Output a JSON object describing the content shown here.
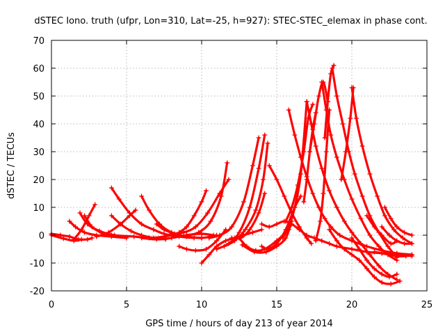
{
  "chart_data": {
    "type": "scatter",
    "title": "dSTEC Iono. truth (ufpr, Lon=310, Lat=-25, h=927): STEC-STEC_elemax in phase cont.",
    "xlabel": "GPS time / hours of day 213 of year 2014",
    "ylabel": "dSTEC  / TECUs",
    "xlim": [
      0,
      25
    ],
    "ylim": [
      -20,
      70
    ],
    "xticks": [
      0,
      5,
      10,
      15,
      20,
      25
    ],
    "yticks": [
      -20,
      -10,
      0,
      10,
      20,
      30,
      40,
      50,
      60,
      70
    ],
    "grid": true,
    "legend": "none",
    "marker": "plus",
    "color": "#ff0000",
    "series": [
      {
        "x": [
          0.0,
          0.6,
          1.2,
          1.8,
          2.4,
          2.7
        ],
        "y": [
          0.5,
          0,
          -0.5,
          -1.5,
          -1.5,
          -1
        ]
      },
      {
        "x": [
          0.0,
          0.8,
          1.5,
          2.0
        ],
        "y": [
          0,
          -1.2,
          -2,
          -1.5
        ]
      },
      {
        "x": [
          1.2,
          1.6,
          2.2,
          3.0,
          4.0,
          5.0
        ],
        "y": [
          5,
          3,
          1,
          0,
          -0.5,
          -1
        ]
      },
      {
        "x": [
          1.5,
          2.0,
          2.5,
          2.9
        ],
        "y": [
          -1.5,
          2,
          7,
          11
        ]
      },
      {
        "x": [
          1.9,
          2.4,
          3.2,
          4.2,
          5.5,
          6.5,
          7.5,
          8.5
        ],
        "y": [
          8,
          4,
          1.5,
          0,
          -0.5,
          -1,
          -0.5,
          0.5
        ]
      },
      {
        "x": [
          2.2,
          2.7,
          3.3,
          4.0
        ],
        "y": [
          7,
          3,
          1,
          0
        ]
      },
      {
        "x": [
          3.0,
          3.8,
          4.6,
          5.2,
          5.6
        ],
        "y": [
          -0.5,
          1,
          4,
          7,
          9
        ]
      },
      {
        "x": [
          4.0,
          4.5,
          5.2,
          6.0,
          6.8,
          7.5,
          8.5,
          9.5
        ],
        "y": [
          17,
          13,
          8,
          4,
          2,
          0.5,
          -0.5,
          -1
        ]
      },
      {
        "x": [
          4.0,
          4.6,
          5.3,
          6.0,
          6.8,
          7.6
        ],
        "y": [
          7,
          4,
          1.5,
          0,
          -1,
          -1.5
        ]
      },
      {
        "x": [
          6.0,
          6.5,
          7.2,
          8.0,
          9.0,
          10.0
        ],
        "y": [
          14,
          9,
          4,
          1,
          -0.5,
          -1
        ]
      },
      {
        "x": [
          6.0,
          7.0,
          8.0,
          9.0,
          10.0,
          10.8
        ],
        "y": [
          -1,
          -1.5,
          -1,
          0,
          0.5,
          0
        ]
      },
      {
        "x": [
          7.0,
          7.5,
          8.2,
          9.0,
          10.0,
          11.0
        ],
        "y": [
          4,
          2,
          0.5,
          -0.5,
          -1,
          0
        ]
      },
      {
        "x": [
          8.5,
          9.0,
          9.5,
          10.0,
          10.3
        ],
        "y": [
          1,
          3,
          7,
          12,
          16
        ]
      },
      {
        "x": [
          8.0,
          8.8,
          9.6,
          10.4,
          11.2,
          11.8
        ],
        "y": [
          0.5,
          1,
          3,
          8,
          15,
          20
        ]
      },
      {
        "x": [
          9.0,
          9.8,
          10.6,
          11.3,
          11.7
        ],
        "y": [
          0,
          1,
          5,
          14,
          26
        ]
      },
      {
        "x": [
          8.5,
          9.0,
          9.6,
          10.3,
          11.0,
          11.6
        ],
        "y": [
          -4,
          -5,
          -5.5,
          -5,
          -2,
          2
        ]
      },
      {
        "x": [
          10.0,
          10.5,
          11.0,
          11.6,
          12.2,
          12.8,
          13.4,
          14.0
        ],
        "y": [
          -10,
          -7,
          -4,
          -2,
          -1,
          0,
          1,
          2
        ]
      },
      {
        "x": [
          10.5,
          11.2,
          12.0,
          12.8,
          13.4,
          13.8
        ],
        "y": [
          -1,
          0,
          3,
          12,
          25,
          35
        ]
      },
      {
        "x": [
          11.0,
          11.8,
          12.5,
          13.2,
          13.8,
          14.2
        ],
        "y": [
          -5,
          -3,
          1,
          10,
          24,
          36
        ]
      },
      {
        "x": [
          11.5,
          12.2,
          12.9,
          13.6,
          14.1,
          14.4
        ],
        "y": [
          -4,
          -2,
          2,
          9,
          20,
          33
        ]
      },
      {
        "x": [
          12.0,
          12.6,
          13.2,
          13.8,
          14.2
        ],
        "y": [
          -1,
          -1,
          2,
          8,
          15
        ]
      },
      {
        "x": [
          12.5,
          13.0,
          13.6,
          14.2,
          15.0,
          15.8
        ],
        "y": [
          -1,
          -4,
          -5.5,
          -5,
          -2,
          2
        ]
      },
      {
        "x": [
          12.7,
          13.5,
          14.3,
          15.0,
          15.6,
          16.0
        ],
        "y": [
          -3.5,
          -6,
          -6,
          -4,
          -1,
          5
        ]
      },
      {
        "x": [
          14.0,
          14.5,
          15.0,
          15.5,
          16.0,
          16.5,
          17.0,
          17.5,
          18.0,
          18.5,
          19.0,
          20.0,
          21.0,
          22.0,
          23.0,
          24.0
        ],
        "y": [
          4,
          3,
          4,
          5,
          4,
          2,
          0,
          -1,
          -2,
          -3,
          -4,
          -5,
          -6,
          -6.5,
          -7,
          -7.5
        ]
      },
      {
        "x": [
          14.5,
          15.0,
          15.5,
          16.0,
          16.5,
          17.0,
          17.3
        ],
        "y": [
          25,
          20,
          14,
          8,
          3,
          -1,
          -3
        ]
      },
      {
        "x": [
          14.0,
          14.4,
          15.0,
          15.6,
          16.2,
          16.6
        ],
        "y": [
          -4,
          -5,
          -3,
          2,
          10,
          14
        ]
      },
      {
        "x": [
          15.8,
          16.2,
          16.6,
          17.0,
          17.4,
          17.8,
          18.2,
          18.6,
          19.2,
          20.0,
          21.0,
          22.0,
          23.0,
          24.0
        ],
        "y": [
          45,
          36,
          28,
          21,
          15,
          10,
          6,
          3,
          0,
          -2,
          -4,
          -5.5,
          -6.5,
          -7
        ]
      },
      {
        "x": [
          15.4,
          15.8,
          16.2,
          16.6,
          17.0
        ],
        "y": [
          -1,
          3,
          10,
          22,
          48
        ]
      },
      {
        "x": [
          15.6,
          16.0,
          16.4,
          16.8,
          17.1,
          17.4
        ],
        "y": [
          5,
          10,
          18,
          30,
          42,
          47
        ]
      },
      {
        "x": [
          17.0,
          17.3,
          17.6,
          18.0,
          18.5,
          19.0,
          19.5,
          20.0,
          20.6,
          21.2,
          21.8,
          22.4,
          23.0
        ],
        "y": [
          48,
          40,
          32,
          24,
          16,
          10,
          5,
          1,
          -3,
          -7,
          -11,
          -14,
          -16
        ]
      },
      {
        "x": [
          16.8,
          17.0,
          17.2,
          17.4,
          17.6
        ],
        "y": [
          12,
          20,
          30,
          38,
          44
        ]
      },
      {
        "x": [
          17.2,
          17.5,
          17.8,
          18.1,
          18.4
        ],
        "y": [
          30,
          40,
          50,
          55,
          48
        ]
      },
      {
        "x": [
          18.0,
          18.3,
          18.6,
          19.0,
          19.5,
          20.0,
          20.6,
          21.2,
          21.8,
          22.4,
          23.0
        ],
        "y": [
          55,
          45,
          36,
          28,
          20,
          13,
          6,
          0,
          -4,
          -7,
          -9
        ]
      },
      {
        "x": [
          17.6,
          17.9,
          18.1,
          18.3,
          18.5
        ],
        "y": [
          -2,
          5,
          15,
          30,
          45
        ]
      },
      {
        "x": [
          18.2,
          18.4,
          18.6,
          18.8
        ],
        "y": [
          35,
          48,
          58,
          61
        ]
      },
      {
        "x": [
          18.7,
          19.0,
          19.4,
          19.8,
          20.2,
          20.7,
          21.2,
          21.8,
          22.4,
          23.0
        ],
        "y": [
          60,
          50,
          40,
          30,
          22,
          14,
          7,
          1,
          -4,
          -8
        ]
      },
      {
        "x": [
          18.5,
          19.0,
          19.5,
          20.0,
          20.5,
          21.0,
          21.5,
          22.0,
          22.6,
          23.2
        ],
        "y": [
          2,
          -2,
          -5,
          -7,
          -9,
          -12,
          -15,
          -17,
          -17.5,
          -16.5
        ]
      },
      {
        "x": [
          19.3,
          19.6,
          19.9,
          20.1
        ],
        "y": [
          20,
          30,
          42,
          53
        ]
      },
      {
        "x": [
          20.0,
          20.3,
          20.7,
          21.2,
          21.7,
          22.2,
          22.8,
          23.4,
          24.0
        ],
        "y": [
          53,
          42,
          32,
          22,
          14,
          7,
          2,
          -1,
          -3
        ]
      },
      {
        "x": [
          20.0,
          20.5,
          21.0,
          21.5,
          22.0,
          22.5,
          23.0
        ],
        "y": [
          -1,
          -5,
          -9,
          -12,
          -14,
          -15,
          -14
        ]
      },
      {
        "x": [
          21.0,
          21.5,
          22.0,
          22.6,
          23.0
        ],
        "y": [
          7,
          3,
          0,
          -3,
          -2
        ]
      },
      {
        "x": [
          22.0,
          22.5,
          23.0,
          23.5,
          24.0
        ],
        "y": [
          3,
          0,
          -2,
          -3,
          -3
        ]
      },
      {
        "x": [
          22.2,
          22.6,
          23.0,
          23.5,
          24.0
        ],
        "y": [
          10,
          6,
          3,
          1,
          0
        ]
      },
      {
        "x": [
          21.5,
          22.0,
          22.5,
          23.0,
          23.6,
          24.0
        ],
        "y": [
          -6,
          -6.5,
          -7,
          -7.5,
          -7.5,
          -7
        ]
      }
    ]
  }
}
